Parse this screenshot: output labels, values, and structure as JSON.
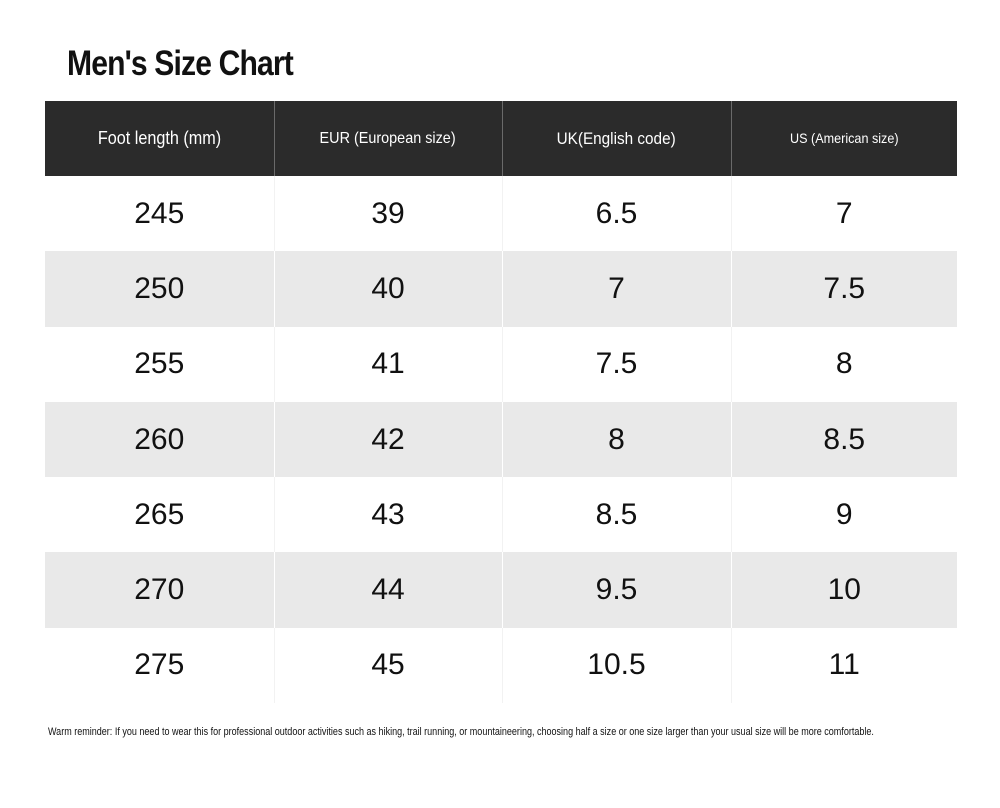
{
  "title": "Men's Size Chart",
  "table": {
    "headers": [
      "Foot length (mm)",
      "EUR (European size)",
      "UK(English code)",
      "US (American size)"
    ],
    "rows": [
      [
        "245",
        "39",
        "6.5",
        "7"
      ],
      [
        "250",
        "40",
        "7",
        "7.5"
      ],
      [
        "255",
        "41",
        "7.5",
        "8"
      ],
      [
        "260",
        "42",
        "8",
        "8.5"
      ],
      [
        "265",
        "43",
        "8.5",
        "9"
      ],
      [
        "270",
        "44",
        "9.5",
        "10"
      ],
      [
        "275",
        "45",
        "10.5",
        "11"
      ]
    ]
  },
  "reminder": "Warm reminder: If you need to wear this for professional outdoor activities such as hiking, trail running, or mountaineering, choosing half a size or one size larger than your usual size will be more comfortable.",
  "colors": {
    "header_bg": "#2b2b2b",
    "header_text": "#ffffff",
    "alt_row_bg": "#e9e9e9",
    "row_bg": "#ffffff",
    "text": "#111111"
  }
}
